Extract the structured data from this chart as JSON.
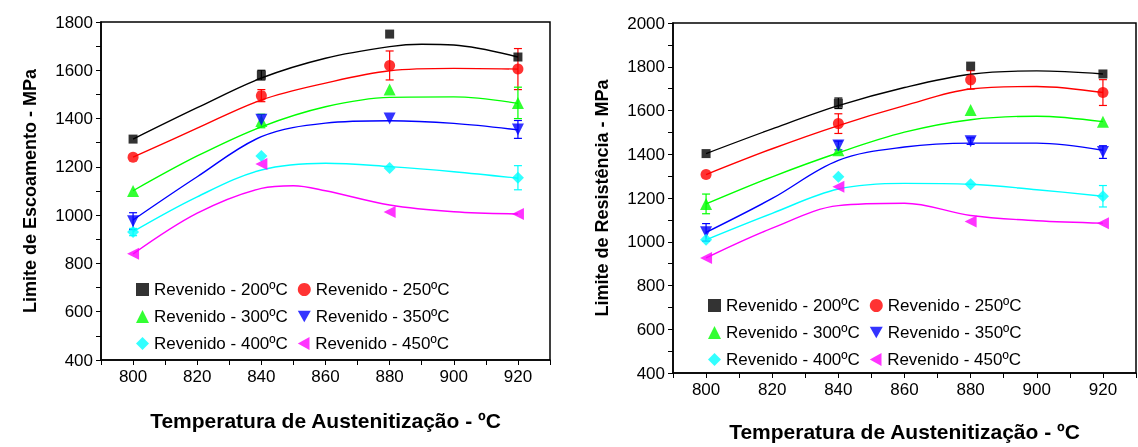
{
  "chart_data": [
    {
      "type": "scatter",
      "xlabel": "Temperatura de Austenitização - ºC",
      "ylabel": "Limite de Escoamento - MPa",
      "x": [
        800,
        840,
        880,
        920
      ],
      "xlim": [
        790,
        930
      ],
      "xticks": [
        {
          "value": 790,
          "label": null
        },
        800,
        {
          "value": 810,
          "label": null
        },
        820,
        {
          "value": 830,
          "label": null
        },
        840,
        {
          "value": 850,
          "label": null
        },
        860,
        {
          "value": 870,
          "label": null
        },
        880,
        {
          "value": 890,
          "label": null
        },
        900,
        {
          "value": 910,
          "label": null
        },
        920,
        {
          "value": 930,
          "label": null
        }
      ],
      "ylim": [
        400,
        1800
      ],
      "yticks": [
        400,
        {
          "value": 500,
          "label": null
        },
        600,
        {
          "value": 700,
          "label": null
        },
        800,
        {
          "value": 900,
          "label": null
        },
        1000,
        {
          "value": 1100,
          "label": null
        },
        1200,
        {
          "value": 1300,
          "label": null
        },
        1400,
        {
          "value": 1500,
          "label": null
        },
        1600,
        {
          "value": 1700,
          "label": null
        },
        1800
      ],
      "grid": false,
      "legend": "bottom",
      "series": [
        {
          "name": "Revenido - 200ºC",
          "color": "#000000",
          "marker": "square",
          "values": [
            1315,
            1580,
            1750,
            1655
          ],
          "errors": [
            null,
            20,
            null,
            null
          ]
        },
        {
          "name": "Revenido - 250ºC",
          "color": "#ff0000",
          "marker": "circle",
          "values": [
            1240,
            1495,
            1620,
            1605
          ],
          "errors": [
            null,
            25,
            60,
            85
          ]
        },
        {
          "name": "Revenido - 300ºC",
          "color": "#00ff00",
          "marker": "triangle",
          "values": [
            1100,
            1390,
            1520,
            1465
          ],
          "errors": [
            null,
            28,
            null,
            65
          ]
        },
        {
          "name": "Revenido - 350ºC",
          "color": "#0000ff",
          "marker": "triangle-down",
          "values": [
            975,
            1395,
            1400,
            1355
          ],
          "errors": [
            35,
            null,
            null,
            37
          ]
        },
        {
          "name": "Revenido - 400ºC",
          "color": "#00ffff",
          "marker": "diamond",
          "values": [
            930,
            1245,
            1195,
            1155
          ],
          "errors": [
            15,
            null,
            null,
            50
          ]
        },
        {
          "name": "Revenido - 450ºC",
          "color": "#ff00ff",
          "marker": "triangle-left",
          "values": [
            840,
            1212,
            1013,
            1005
          ],
          "errors": [
            null,
            null,
            null,
            null
          ]
        },
        {
          "type": "line",
          "color": "#000000",
          "marker": "none",
          "x": [
            800,
            820,
            840,
            860,
            880,
            890,
            900,
            920
          ],
          "values": [
            1315,
            1445,
            1568,
            1650,
            1698,
            1708,
            1705,
            1655
          ]
        },
        {
          "type": "line",
          "color": "#ff0000",
          "marker": "none",
          "x": [
            800,
            820,
            840,
            860,
            880,
            900,
            920
          ],
          "values": [
            1240,
            1360,
            1477,
            1547,
            1598,
            1608,
            1605
          ]
        },
        {
          "type": "line",
          "color": "#00ff00",
          "marker": "none",
          "x": [
            800,
            820,
            840,
            860,
            880,
            900,
            920
          ],
          "values": [
            1101,
            1245,
            1366,
            1449,
            1488,
            1490,
            1463
          ]
        },
        {
          "type": "line",
          "color": "#0000ff",
          "marker": "none",
          "x": [
            800,
            820,
            840,
            860,
            880,
            900,
            920
          ],
          "values": [
            980,
            1159,
            1325,
            1381,
            1391,
            1380,
            1353
          ]
        },
        {
          "type": "line",
          "color": "#00ffff",
          "marker": "none",
          "x": [
            800,
            820,
            840,
            860,
            880,
            900,
            920
          ],
          "values": [
            932,
            1076,
            1187,
            1215,
            1201,
            1180,
            1153
          ]
        },
        {
          "type": "line",
          "color": "#ff00ff",
          "marker": "none",
          "x": [
            800,
            820,
            840,
            850,
            860,
            880,
            900,
            920
          ],
          "values": [
            839,
            1008,
            1111,
            1122,
            1101,
            1042,
            1014,
            1005
          ]
        }
      ]
    },
    {
      "type": "scatter",
      "xlabel": "Temperatura de Austenitização - ºC",
      "ylabel": "Limite de Resistência - MPa",
      "x": [
        800,
        840,
        880,
        920
      ],
      "xlim": [
        790,
        930
      ],
      "xticks": [
        {
          "value": 790,
          "label": null
        },
        800,
        {
          "value": 810,
          "label": null
        },
        820,
        {
          "value": 830,
          "label": null
        },
        840,
        {
          "value": 850,
          "label": null
        },
        860,
        {
          "value": 870,
          "label": null
        },
        880,
        {
          "value": 890,
          "label": null
        },
        900,
        {
          "value": 910,
          "label": null
        },
        920,
        {
          "value": 930,
          "label": null
        }
      ],
      "ylim": [
        400,
        2000
      ],
      "yticks": [
        400,
        {
          "value": 500,
          "label": null
        },
        600,
        {
          "value": 700,
          "label": null
        },
        800,
        {
          "value": 900,
          "label": null
        },
        1000,
        {
          "value": 1100,
          "label": null
        },
        1200,
        {
          "value": 1300,
          "label": null
        },
        1400,
        {
          "value": 1500,
          "label": null
        },
        1600,
        {
          "value": 1700,
          "label": null
        },
        1800,
        {
          "value": 1900,
          "label": null
        },
        2000
      ],
      "grid": false,
      "legend": "bottom",
      "series": [
        {
          "name": "Revenido - 200ºC",
          "color": "#000000",
          "marker": "square",
          "values": [
            1403,
            1633,
            1803,
            1767
          ],
          "errors": [
            null,
            24,
            null,
            null
          ]
        },
        {
          "name": "Revenido - 250ºC",
          "color": "#ff0000",
          "marker": "circle",
          "values": [
            1307,
            1540,
            1740,
            1682
          ],
          "errors": [
            null,
            45,
            42,
            59
          ]
        },
        {
          "name": "Revenido - 300ºC",
          "color": "#00ff00",
          "marker": "triangle",
          "values": [
            1173,
            1418,
            1602,
            1549
          ],
          "errors": [
            45,
            null,
            null,
            null
          ]
        },
        {
          "name": "Revenido - 350ºC",
          "color": "#0000ff",
          "marker": "triangle-down",
          "values": [
            1043,
            1440,
            1460,
            1410
          ],
          "errors": [
            40,
            20,
            15,
            29
          ]
        },
        {
          "name": "Revenido - 400ºC",
          "color": "#00ffff",
          "marker": "diamond",
          "values": [
            1009,
            1297,
            1263,
            1208
          ],
          "errors": [
            null,
            null,
            null,
            49
          ]
        },
        {
          "name": "Revenido - 450ºC",
          "color": "#ff00ff",
          "marker": "triangle-left",
          "values": [
            926,
            1251,
            1093,
            1085
          ],
          "errors": [
            null,
            null,
            null,
            null
          ]
        },
        {
          "type": "line",
          "color": "#000000",
          "marker": "none",
          "x": [
            800,
            820,
            840,
            860,
            880,
            900,
            920
          ],
          "values": [
            1403,
            1516,
            1622,
            1705,
            1766,
            1781,
            1767
          ]
        },
        {
          "type": "line",
          "color": "#ff0000",
          "marker": "none",
          "x": [
            800,
            820,
            840,
            860,
            880,
            900,
            920
          ],
          "values": [
            1307,
            1425,
            1531,
            1622,
            1698,
            1710,
            1682
          ]
        },
        {
          "type": "line",
          "color": "#00ff00",
          "marker": "none",
          "x": [
            800,
            820,
            840,
            860,
            880,
            900,
            920
          ],
          "values": [
            1173,
            1297,
            1407,
            1501,
            1558,
            1574,
            1549
          ]
        },
        {
          "type": "line",
          "color": "#0000ff",
          "marker": "none",
          "x": [
            800,
            820,
            840,
            860,
            880,
            900,
            920
          ],
          "values": [
            1043,
            1198,
            1372,
            1433,
            1451,
            1451,
            1418
          ]
        },
        {
          "type": "line",
          "color": "#00ffff",
          "marker": "none",
          "x": [
            800,
            820,
            840,
            860,
            880,
            900,
            920
          ],
          "values": [
            1009,
            1130,
            1241,
            1267,
            1263,
            1238,
            1208
          ]
        },
        {
          "type": "line",
          "color": "#ff00ff",
          "marker": "none",
          "x": [
            800,
            820,
            840,
            860,
            880,
            900,
            920
          ],
          "values": [
            926,
            1062,
            1165,
            1176,
            1120,
            1096,
            1085
          ]
        }
      ]
    }
  ]
}
